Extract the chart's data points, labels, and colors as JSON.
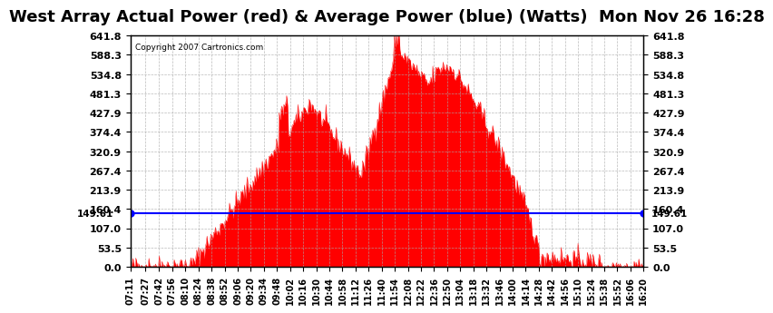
{
  "title": "West Array Actual Power (red) & Average Power (blue) (Watts)  Mon Nov 26 16:28",
  "copyright": "Copyright 2007 Cartronics.com",
  "avg_power": 149.61,
  "ylim": [
    0.0,
    641.8
  ],
  "yticks": [
    0.0,
    53.5,
    107.0,
    160.4,
    213.9,
    267.4,
    320.9,
    374.4,
    427.9,
    481.3,
    534.8,
    588.3,
    641.8
  ],
  "background_color": "#ffffff",
  "grid_color": "#aaaaaa",
  "fill_color": "#ff0000",
  "avg_line_color": "#0000ff",
  "title_fontsize": 13,
  "xlabel_fontsize": 7,
  "ylabel_fontsize": 8,
  "time_labels": [
    "07:11",
    "07:27",
    "07:42",
    "07:56",
    "08:10",
    "08:24",
    "08:38",
    "08:52",
    "09:06",
    "09:20",
    "09:34",
    "09:48",
    "10:02",
    "10:16",
    "10:30",
    "10:44",
    "10:58",
    "11:12",
    "11:26",
    "11:40",
    "11:54",
    "12:08",
    "12:22",
    "12:36",
    "12:50",
    "13:04",
    "13:18",
    "13:32",
    "13:46",
    "14:00",
    "14:14",
    "14:28",
    "14:42",
    "14:56",
    "15:10",
    "15:24",
    "15:38",
    "15:52",
    "16:06",
    "16:20"
  ]
}
